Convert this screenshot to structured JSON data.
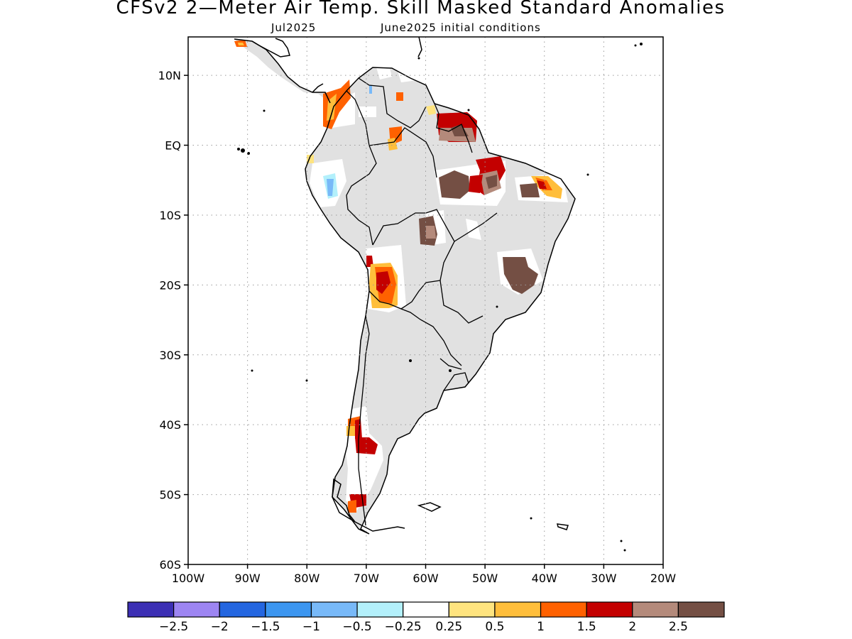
{
  "header": {
    "title": "CFSv2 2—Meter Air Temp. Skill Masked Standard Anomalies",
    "valid_month": "Jul2025",
    "initial_conditions": "June2025 initial conditions"
  },
  "map": {
    "lat_labels": [
      "10N",
      "EQ",
      "10S",
      "20S",
      "30S",
      "40S",
      "50S",
      "60S"
    ],
    "lat_values": [
      10,
      0,
      -10,
      -20,
      -30,
      -40,
      -50,
      -60
    ],
    "lon_labels": [
      "100W",
      "90W",
      "80W",
      "70W",
      "60W",
      "50W",
      "40W",
      "30W",
      "20W"
    ],
    "lon_values": [
      -100,
      -90,
      -80,
      -70,
      -60,
      -50,
      -40,
      -30,
      -20
    ],
    "lon_range": [
      -100,
      -20
    ],
    "lat_range": [
      -60,
      15.5
    ],
    "colors": {
      "land_mask": "#e1e1e1",
      "coastline": "#000000",
      "grid": "#9a9a9a"
    }
  },
  "colorbar": {
    "colors": [
      "#3c2fb4",
      "#9d85f2",
      "#2466e0",
      "#3c96f0",
      "#78b9f8",
      "#b3f0fb",
      "#ffffff",
      "#ffe47f",
      "#ffbe3b",
      "#ff6100",
      "#c30000",
      "#b48a7b",
      "#744f44"
    ],
    "labels": [
      "−2.5",
      "−2",
      "−1.5",
      "−1",
      "−0.5",
      "−0.25",
      "0.25",
      "0.5",
      "1",
      "1.5",
      "2",
      "2.5"
    ]
  }
}
